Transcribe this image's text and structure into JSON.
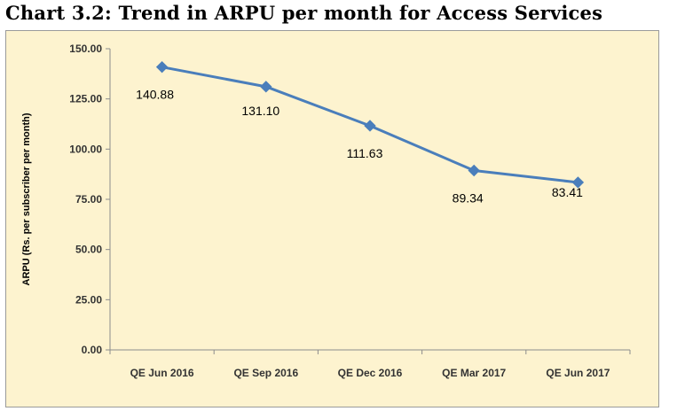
{
  "page": {
    "title": "Chart 3.2: Trend in ARPU per month for Access Services"
  },
  "chart_data": {
    "type": "line",
    "title": "Chart 3.2: Trend in ARPU per month for Access Services",
    "xlabel": "",
    "ylabel": "ARPU (Rs. per subscriber per month)",
    "categories": [
      "QE Jun 2016",
      "QE Sep 2016",
      "QE Dec 2016",
      "QE Mar 2017",
      "QE Jun 2017"
    ],
    "series": [
      {
        "values": [
          140.88,
          131.1,
          111.63,
          89.34,
          83.41
        ]
      }
    ],
    "data_labels": [
      "140.88",
      "131.10",
      "111.63",
      "89.34",
      "83.41"
    ],
    "ylim": [
      0,
      150
    ],
    "yticks": [
      "0.00",
      "25.00",
      "50.00",
      "75.00",
      "100.00",
      "125.00",
      "150.00"
    ],
    "grid": false,
    "legend": "none",
    "colors": {
      "line": "#4a7ebb",
      "marker": "#4a7ebb",
      "plot_background": "#fdf3cf",
      "axis": "#8c8c8c"
    }
  }
}
